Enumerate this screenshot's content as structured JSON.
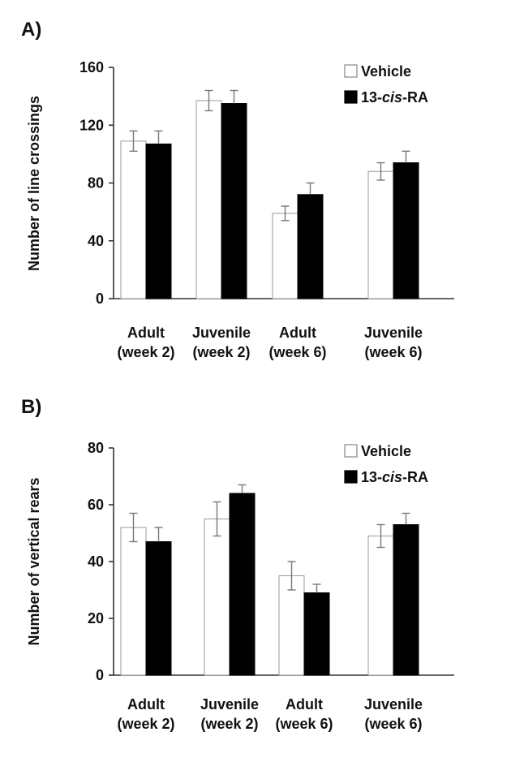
{
  "colors": {
    "vehicle_fill": "#ffffff",
    "treatment_fill": "#000000",
    "axis": "#333333",
    "error_bar": "#777777"
  },
  "chart_data": [
    {
      "type": "bar",
      "panel": "A)",
      "title": "",
      "xlabel": "",
      "ylabel": "Number of line crossings",
      "ylim": [
        0,
        160
      ],
      "yticks": [
        "0",
        "40",
        "80",
        "120",
        "160"
      ],
      "categories": [
        [
          "Adult",
          "(week 2)"
        ],
        [
          "Juvenile",
          "(week 2)"
        ],
        [
          "Adult",
          "(week 6)"
        ],
        [
          "Juvenile",
          "(week 6)"
        ]
      ],
      "series": [
        {
          "name": "Vehicle",
          "color": "#ffffff",
          "values": [
            109,
            137,
            59,
            88
          ],
          "errors": [
            7,
            7,
            5,
            6
          ]
        },
        {
          "name": "13-cis-RA",
          "name_parts": [
            "13-",
            "cis",
            "-RA"
          ],
          "color": "#000000",
          "values": [
            107,
            135,
            72,
            94
          ],
          "errors": [
            9,
            9,
            8,
            8
          ]
        }
      ],
      "legend": "top-right",
      "grid": false
    },
    {
      "type": "bar",
      "panel": "B)",
      "title": "",
      "xlabel": "",
      "ylabel": "Number of vertical rears",
      "ylim": [
        0,
        80
      ],
      "yticks": [
        "0",
        "20",
        "40",
        "60",
        "80"
      ],
      "categories": [
        [
          "Adult",
          "(week 2)"
        ],
        [
          "Juvenile",
          "(week 2)"
        ],
        [
          "Adult",
          "(week 6)"
        ],
        [
          "Juvenile",
          "(week 6)"
        ]
      ],
      "series": [
        {
          "name": "Vehicle",
          "color": "#ffffff",
          "values": [
            52,
            55,
            35,
            49
          ],
          "errors": [
            5,
            6,
            5,
            4
          ]
        },
        {
          "name": "13-cis-RA",
          "name_parts": [
            "13-",
            "cis",
            "-RA"
          ],
          "color": "#000000",
          "values": [
            47,
            64,
            29,
            53
          ],
          "errors": [
            5,
            3,
            3,
            4
          ]
        }
      ],
      "legend": "top-right",
      "grid": false
    }
  ]
}
